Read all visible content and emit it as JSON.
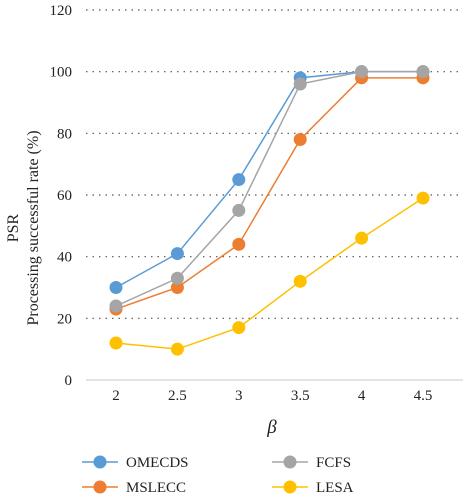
{
  "chart_data": {
    "type": "line",
    "title": "",
    "xlabel": "β",
    "ylabel_line1": "PSR",
    "ylabel_line2": "Processing successful rate (%)",
    "x": [
      2,
      2.5,
      3,
      3.5,
      4,
      4.5
    ],
    "x_tick_labels": [
      "2",
      "2.5",
      "3",
      "3.5",
      "4",
      "4.5"
    ],
    "ylim": [
      0,
      120
    ],
    "y_ticks": [
      0,
      20,
      40,
      60,
      80,
      100,
      120
    ],
    "grid": "horizontal-dotted",
    "legend_position": "bottom",
    "series": [
      {
        "name": "OMECDS",
        "color": "#5b9bd5",
        "values": [
          30,
          41,
          65,
          98,
          100,
          100
        ]
      },
      {
        "name": "MSLECC",
        "color": "#ed7d31",
        "values": [
          23,
          30,
          44,
          78,
          98,
          98
        ]
      },
      {
        "name": "FCFS",
        "color": "#a5a5a5",
        "values": [
          24,
          33,
          55,
          96,
          100,
          100
        ]
      },
      {
        "name": "LESA",
        "color": "#ffc000",
        "values": [
          12,
          10,
          17,
          32,
          46,
          59
        ]
      }
    ]
  }
}
